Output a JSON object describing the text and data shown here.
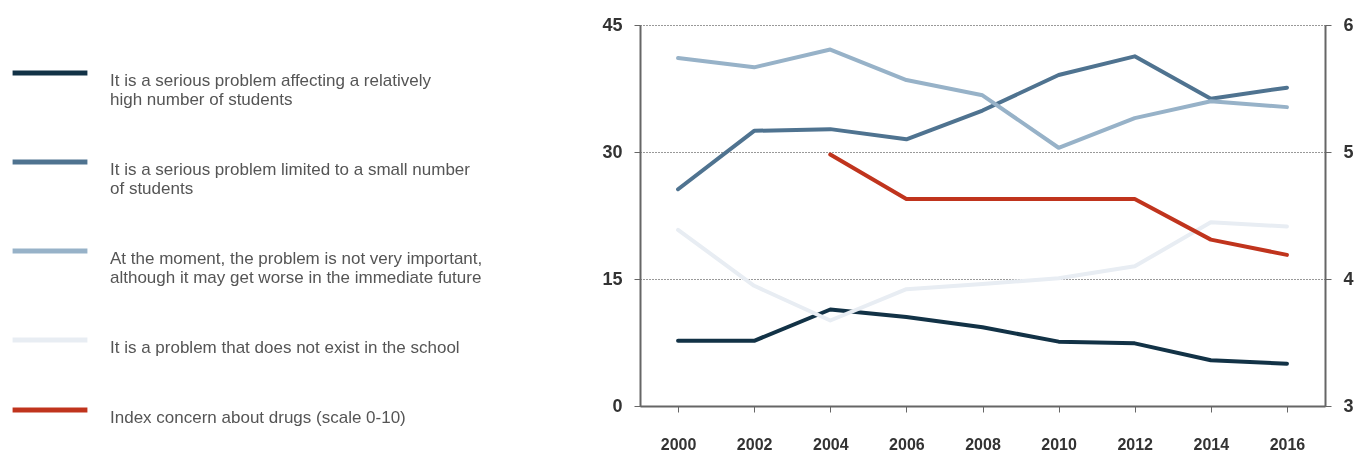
{
  "chart_data": {
    "type": "line",
    "x": [
      2000,
      2002,
      2004,
      2006,
      2008,
      2010,
      2012,
      2014,
      2016
    ],
    "xlim": [
      1999,
      2017
    ],
    "xticks": [
      2000,
      2002,
      2004,
      2006,
      2008,
      2010,
      2012,
      2014,
      2016
    ],
    "ylim": [
      0,
      45
    ],
    "yticks": [
      0,
      15,
      30,
      45
    ],
    "y2lim": [
      3,
      6
    ],
    "y2ticks": [
      3,
      4,
      5,
      6
    ],
    "grid": "y",
    "legend": "left",
    "line_style": "solid",
    "marker": "none",
    "series": [
      {
        "name": "It is a serious problem affecting a relatively high number of students",
        "color": "#123246",
        "values": [
          7.7,
          7.7,
          11.4,
          10.5,
          9.3,
          7.6,
          7.4,
          5.4,
          5.0
        ]
      },
      {
        "name": "It is a serious problem limited to a small number of students",
        "color": "#4f7390",
        "values": [
          25.6,
          32.5,
          32.7,
          31.5,
          34.9,
          39.1,
          41.3,
          36.3,
          37.6
        ]
      },
      {
        "name": "At the moment, the problem is not very important, although it may get worse in the immediate future",
        "color": "#97b2c8",
        "values": [
          41.1,
          40.0,
          42.1,
          38.5,
          36.7,
          30.5,
          34.0,
          36.0,
          35.3
        ]
      },
      {
        "name": "It is a problem that does not exist in the school",
        "color": "#e8edf3",
        "values": [
          20.8,
          14.2,
          10.1,
          13.8,
          14.4,
          15.1,
          16.5,
          21.7,
          21.2
        ]
      },
      {
        "name": "Index concern about drugs (scale 0-10)",
        "color": "#c0341d",
        "axis": "y2",
        "values": [
          null,
          null,
          4.98,
          4.63,
          4.63,
          4.63,
          4.63,
          4.31,
          4.19
        ]
      }
    ]
  }
}
